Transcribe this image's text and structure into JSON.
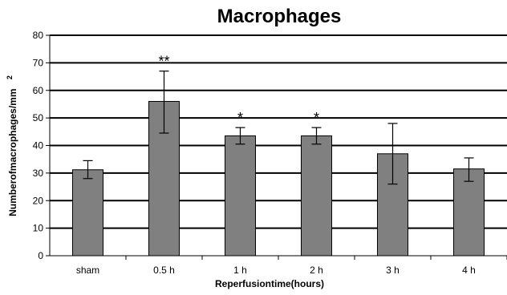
{
  "chart_data": {
    "type": "bar",
    "title": "Macrophages",
    "xlabel": "Reperfusiontime(hours)",
    "ylabel": "Numberofmacrophages/mm",
    "ylabel_superscript": "2",
    "categories": [
      "sham",
      "0.5 h",
      "1 h",
      "2 h",
      "3 h",
      "4 h"
    ],
    "values": [
      31.2,
      56,
      43.5,
      43.5,
      37,
      31.5
    ],
    "error_upper": [
      34.5,
      67,
      46.5,
      46.5,
      48,
      35.5
    ],
    "error_lower": [
      28,
      44.5,
      40.5,
      40.5,
      26,
      27
    ],
    "significance": [
      "",
      "**",
      "*",
      "*",
      "",
      ""
    ],
    "ylim": [
      0,
      80
    ],
    "yticks": [
      0,
      10,
      20,
      30,
      40,
      50,
      60,
      70,
      80
    ],
    "grid": true,
    "colors": {
      "bar": "#808080",
      "bar_edge": "#000000",
      "grid": "#000000"
    }
  }
}
